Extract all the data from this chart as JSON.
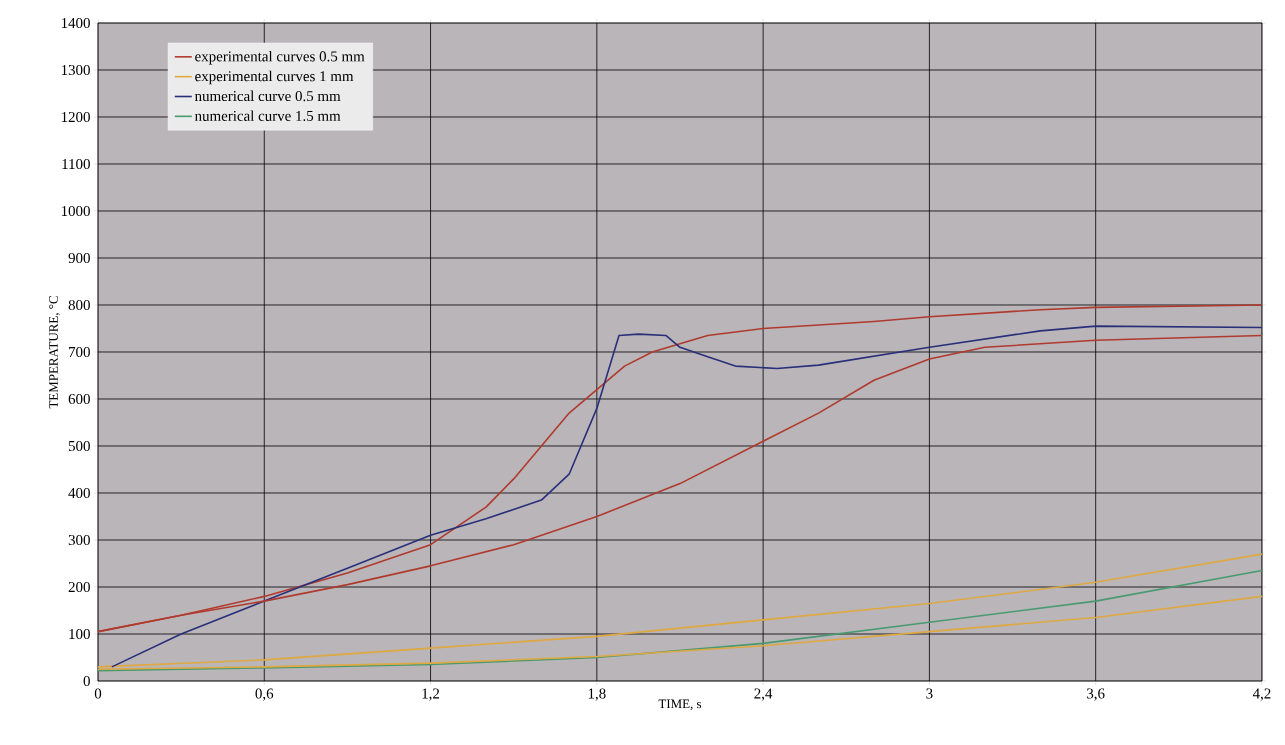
{
  "chart_data": {
    "type": "line",
    "xlabel": "TIME, s",
    "ylabel": "TEMPERATURE, °C",
    "xlim": [
      0,
      4.2
    ],
    "ylim": [
      0,
      1400
    ],
    "xticks": [
      0,
      {
        "value": 0.6,
        "label": "0,6"
      },
      {
        "value": 1.2,
        "label": "1,2"
      },
      {
        "value": 1.8,
        "label": "1,8"
      },
      {
        "value": 2.4,
        "label": "2,4"
      },
      3,
      {
        "value": 3.6,
        "label": "3,6"
      },
      {
        "value": 4.2,
        "label": "4,2"
      }
    ],
    "yticks": [
      0,
      100,
      200,
      300,
      400,
      500,
      600,
      700,
      800,
      900,
      1000,
      1100,
      1200,
      1300,
      1400
    ],
    "grid": true,
    "legend": "top left",
    "line_style": "solid",
    "series": [
      {
        "name": "experimental curves 0.5 mm",
        "color": "#b03a2e",
        "x": [
          0,
          0.3,
          0.6,
          0.9,
          1.2,
          1.4,
          1.5,
          1.6,
          1.7,
          1.8,
          1.9,
          2.0,
          2.2,
          2.4,
          2.8,
          3.0,
          3.4,
          3.6,
          4.2
        ],
        "values": [
          105,
          140,
          180,
          230,
          290,
          370,
          430,
          500,
          570,
          620,
          670,
          700,
          735,
          750,
          765,
          775,
          790,
          795,
          800
        ]
      },
      {
        "name": "experimental curves 1 mm",
        "color": "#e0a840",
        "x": [
          0,
          0.6,
          1.2,
          1.8,
          2.4,
          3.0,
          3.6,
          4.2
        ],
        "values": [
          30,
          45,
          70,
          95,
          130,
          165,
          210,
          270
        ]
      },
      {
        "name": "numerical curve 0.5 mm",
        "color": "#2a2f7a",
        "x": [
          0.05,
          0.3,
          0.6,
          0.9,
          1.2,
          1.4,
          1.6,
          1.7,
          1.8,
          1.88,
          1.95,
          2.05,
          2.1,
          2.2,
          2.3,
          2.45,
          2.6,
          3.0,
          3.4,
          3.6,
          4.2
        ],
        "values": [
          30,
          100,
          170,
          240,
          310,
          345,
          385,
          440,
          580,
          735,
          738,
          735,
          710,
          690,
          670,
          665,
          672,
          710,
          745,
          755,
          752
        ]
      },
      {
        "name": "numerical curve 1.5 mm",
        "color": "#4a9a70",
        "x": [
          0,
          0.6,
          1.2,
          1.8,
          2.4,
          3.0,
          3.6,
          4.2
        ],
        "values": [
          22,
          28,
          35,
          50,
          80,
          125,
          170,
          235
        ]
      },
      {
        "color": "#b03a2e",
        "x": [
          0,
          0.3,
          0.6,
          0.9,
          1.2,
          1.5,
          1.8,
          2.1,
          2.4,
          2.6,
          2.8,
          3.0,
          3.2,
          3.6,
          4.2
        ],
        "values": [
          105,
          140,
          170,
          205,
          245,
          290,
          350,
          420,
          510,
          570,
          640,
          685,
          710,
          725,
          735
        ]
      },
      {
        "color": "#e0a840",
        "x": [
          0,
          0.6,
          1.2,
          1.8,
          2.4,
          3.0,
          3.6,
          4.2
        ],
        "values": [
          25,
          30,
          38,
          52,
          75,
          105,
          135,
          180
        ]
      }
    ]
  }
}
